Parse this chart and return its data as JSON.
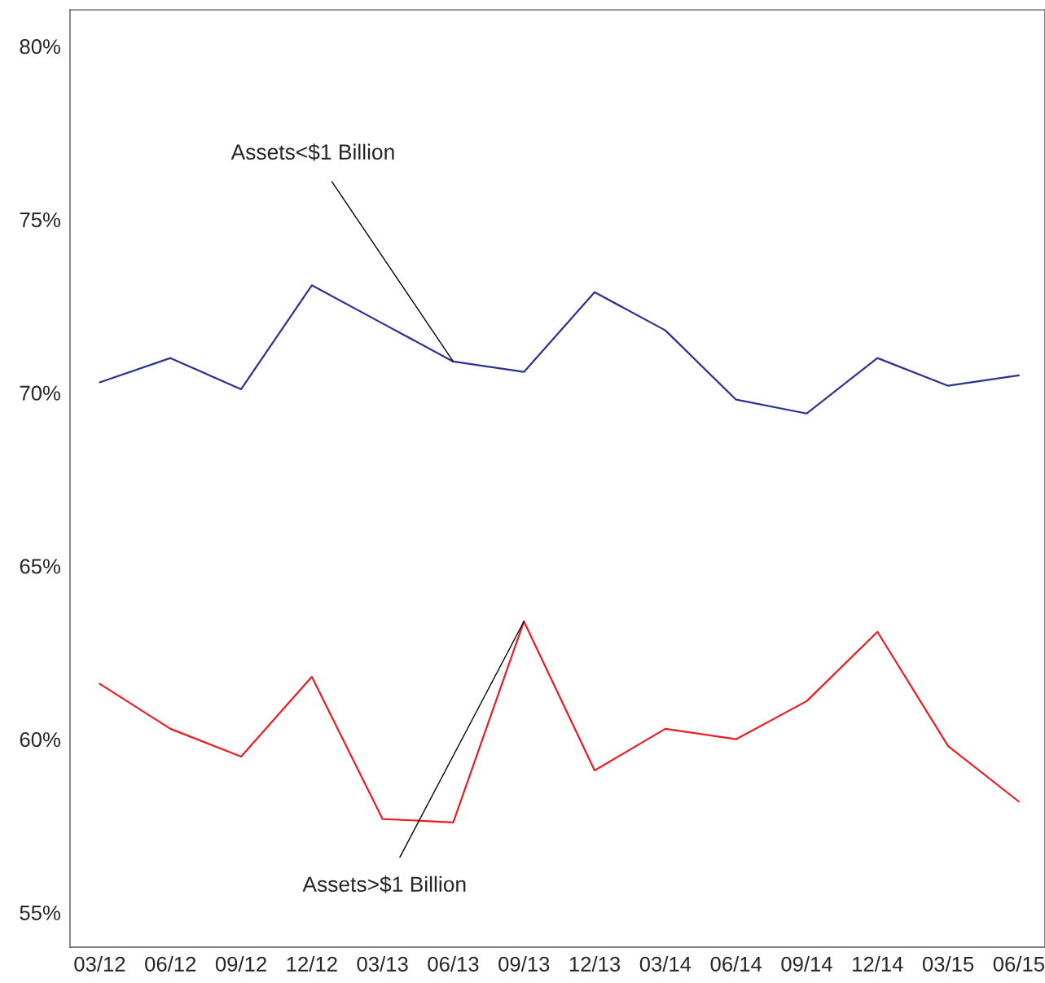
{
  "chart_data": {
    "type": "line",
    "categories": [
      "03/12",
      "06/12",
      "09/12",
      "12/12",
      "03/13",
      "06/13",
      "09/13",
      "12/13",
      "03/14",
      "06/14",
      "09/14",
      "12/14",
      "03/15",
      "06/15"
    ],
    "series": [
      {
        "color": "#2e3192",
        "values": [
          70.3,
          71.0,
          70.1,
          73.1,
          72.0,
          70.9,
          70.6,
          72.9,
          71.8,
          69.8,
          69.4,
          71.0,
          70.2,
          70.5
        ]
      },
      {
        "color": "#ed1c24",
        "values": [
          61.6,
          60.3,
          59.5,
          61.8,
          57.7,
          57.6,
          63.4,
          59.1,
          60.3,
          60.0,
          61.1,
          63.1,
          59.8,
          58.2
        ]
      }
    ],
    "ylim": [
      54,
      81.05
    ],
    "yticks": [
      {
        "value": 55,
        "label": "55%"
      },
      {
        "value": 60,
        "label": "60%"
      },
      {
        "value": 65,
        "label": "65%"
      },
      {
        "value": 70,
        "label": "70%"
      },
      {
        "value": 75,
        "label": "75%"
      },
      {
        "value": 80,
        "label": "80%"
      }
    ],
    "annotations": [
      {
        "text": "Assets<$1 Billion",
        "x": "06/13",
        "y": 70.9
      },
      {
        "text": "Assets>$1 Billion",
        "x": "09/13",
        "y": 63.4
      }
    ],
    "grid": false,
    "legend": false,
    "marker": "none",
    "line_style": "solid"
  }
}
